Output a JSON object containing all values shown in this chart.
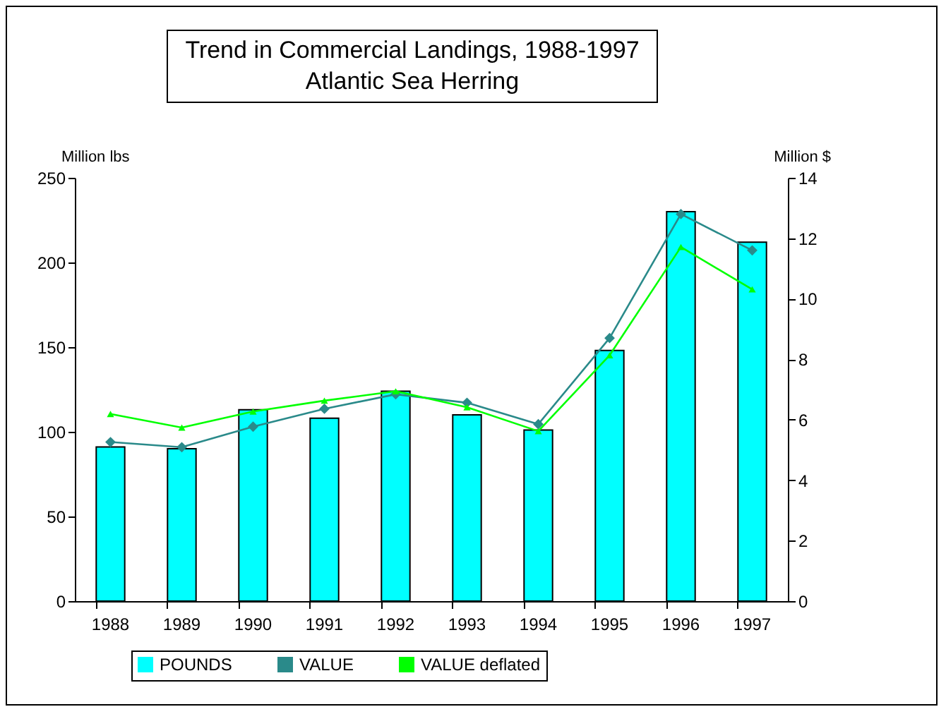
{
  "chart_data": {
    "type": "bar",
    "title": "Trend in Commercial Landings, 1988-1997\nAtlantic Sea Herring",
    "ylabel": "Million lbs",
    "y2label": "Million $",
    "categories": [
      "1988",
      "1989",
      "1990",
      "1991",
      "1992",
      "1993",
      "1994",
      "1995",
      "1996",
      "1997"
    ],
    "series": [
      {
        "name": "POUNDS",
        "color": "#00ffff",
        "values": [
          91,
          90,
          113,
          108,
          124,
          110,
          101,
          148,
          230,
          212
        ]
      },
      {
        "name": "VALUE",
        "type": "line",
        "axis": "y2",
        "marker": "diamond",
        "color": "#2a8a8a",
        "values": [
          5.26,
          5.09,
          5.77,
          6.36,
          6.84,
          6.56,
          5.85,
          8.7,
          12.8,
          11.6
        ]
      },
      {
        "name": "VALUE deflated",
        "type": "line",
        "axis": "y2",
        "marker": "triangle",
        "color": "#00ff00",
        "values": [
          6.19,
          5.74,
          6.27,
          6.63,
          6.94,
          6.41,
          5.62,
          8.13,
          11.71,
          10.31
        ]
      }
    ],
    "ylim": [
      0,
      250
    ],
    "yticks": [
      0,
      50,
      100,
      150,
      200,
      250
    ],
    "y2lim": [
      0,
      14
    ],
    "y2ticks": [
      0,
      2,
      4,
      6,
      8,
      10,
      12,
      14
    ],
    "legend": "bottom",
    "grid": false
  }
}
